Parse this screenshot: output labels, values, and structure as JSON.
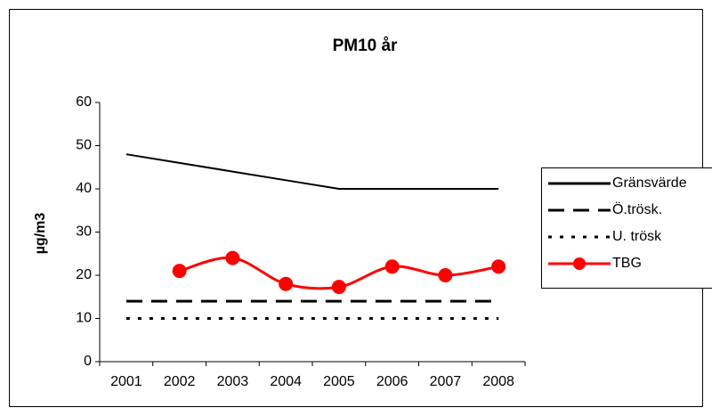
{
  "chart_data": {
    "type": "line",
    "title": "PM10 år",
    "y_label": "µg/m3",
    "categories": [
      "2001",
      "2002",
      "2003",
      "2004",
      "2005",
      "2006",
      "2007",
      "2008"
    ],
    "series": [
      {
        "name": "Gränsvärde",
        "color": "#000000",
        "dash": "solid",
        "values": [
          48,
          46,
          44,
          42,
          40,
          40,
          40,
          40
        ]
      },
      {
        "name": "Ö.trösk.",
        "color": "#000000",
        "dash": "dashed",
        "values": [
          14,
          14,
          14,
          14,
          14,
          14,
          14,
          14
        ]
      },
      {
        "name": "U. trösk",
        "color": "#000000",
        "dash": "dotted",
        "values": [
          10,
          10,
          10,
          10,
          10,
          10,
          10,
          10
        ]
      },
      {
        "name": "TBG",
        "color": "#ff0000",
        "dash": "solid",
        "markers": true,
        "values": [
          null,
          21,
          24,
          18,
          17.3,
          22,
          20,
          22
        ]
      }
    ],
    "ylim": [
      0,
      60
    ],
    "yticks": [
      0,
      10,
      20,
      30,
      40,
      50,
      60
    ],
    "grid": false,
    "legend": "right"
  }
}
